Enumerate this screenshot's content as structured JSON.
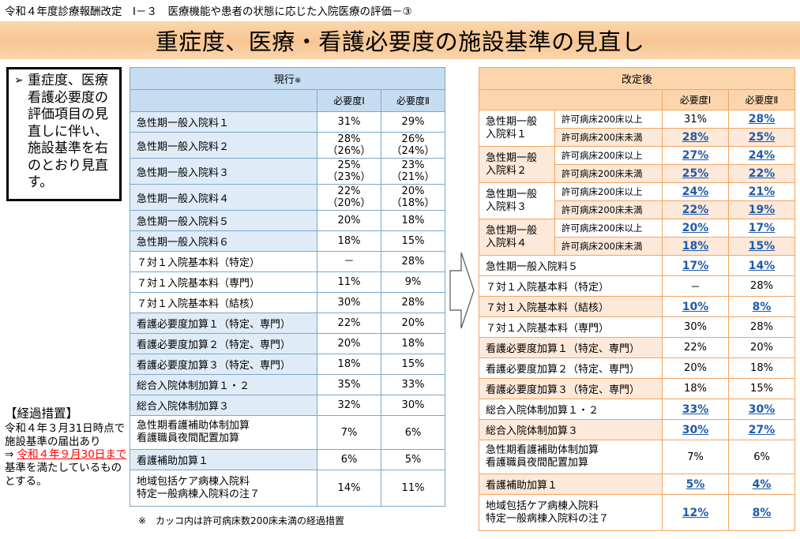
{
  "header": "令和４年度診療報酬改定　Ⅰ－３　医療機能や患者の状態に応じた入院医療の評価－③",
  "title": "重症度、医療・看護必要度の施設基準の見直し",
  "note": {
    "bullet": "➢",
    "text": "重症度、医療看護必要度の評価項目の見直しに伴い、施設基準を右のとおり見直す。"
  },
  "transitional": {
    "title": "【経過措置】",
    "line1": "令和４年３月31日時点で施設基準の届出あり",
    "arrow": "⇒",
    "deadline": "令和４年９月30日まで",
    "tail": "基準を満たしているものとする。"
  },
  "current": {
    "title": "現行",
    "title_mark": "※",
    "col1": "必要度Ⅰ",
    "col2": "必要度Ⅱ",
    "rows": [
      {
        "name": "急性期一般入院料１",
        "v1": "31%",
        "v2": "29%",
        "tint": 1
      },
      {
        "name": "急性期一般入院料２",
        "v1": "28%",
        "v1b": "（26%）",
        "v2": "26%",
        "v2b": "（24%）",
        "tint": 1
      },
      {
        "name": "急性期一般入院料３",
        "v1": "25%",
        "v1b": "（23%）",
        "v2": "23%",
        "v2b": "（21%）",
        "tint": 1
      },
      {
        "name": "急性期一般入院料４",
        "v1": "22%",
        "v1b": "（20%）",
        "v2": "20%",
        "v2b": "（18%）",
        "tint": 1
      },
      {
        "name": "急性期一般入院料５",
        "v1": "20%",
        "v2": "18%",
        "tint": 1
      },
      {
        "name": "急性期一般入院料６",
        "v1": "18%",
        "v2": "15%",
        "tint": 1
      },
      {
        "name": "７対１入院基本料（特定）",
        "v1": "－",
        "v2": "28%",
        "tint": 0
      },
      {
        "name": "７対１入院基本料（専門）",
        "v1": "11%",
        "v2": "9%",
        "tint": 0
      },
      {
        "name": "７対１入院基本料（結核）",
        "v1": "30%",
        "v2": "28%",
        "tint": 0
      },
      {
        "name": "看護必要度加算１（特定、専門）",
        "v1": "22%",
        "v2": "20%",
        "tint": 1
      },
      {
        "name": "看護必要度加算２（特定、専門）",
        "v1": "20%",
        "v2": "18%",
        "tint": 1
      },
      {
        "name": "看護必要度加算３（特定、専門）",
        "v1": "18%",
        "v2": "15%",
        "tint": 1
      },
      {
        "name": "総合入院体制加算１・２",
        "v1": "35%",
        "v2": "33%",
        "tint": 1
      },
      {
        "name": "総合入院体制加算３",
        "v1": "32%",
        "v2": "30%",
        "tint": 1
      },
      {
        "name": "急性期看護補助体制加算",
        "name2": "看護職員夜間配置加算",
        "v1": "7%",
        "v2": "6%",
        "tint": 0
      },
      {
        "name": "看護補助加算１",
        "v1": "6%",
        "v2": "5%",
        "tint": 1
      },
      {
        "name": "地域包括ケア病棟入院料",
        "name2": "特定一般病棟入院料の注７",
        "v1": "14%",
        "v2": "11%",
        "tint": 0
      }
    ]
  },
  "footnote": "※　カッコ内は許可病床数200床未満の経過措置",
  "revised": {
    "title": "改定後",
    "col1": "必要度Ⅰ",
    "col2": "必要度Ⅱ",
    "bed_large": "許可病床200床以上",
    "bed_small": "許可病床200床未満",
    "groups": [
      {
        "name1": "急性期一般",
        "name2": "入院料１",
        "a1": "31%",
        "a1c": 0,
        "a2": "28%",
        "a2c": 1,
        "b1": "28%",
        "b1c": 1,
        "b2": "25%",
        "b2c": 1
      },
      {
        "name1": "急性期一般",
        "name2": "入院料２",
        "a1": "27%",
        "a1c": 1,
        "a2": "24%",
        "a2c": 1,
        "b1": "25%",
        "b1c": 1,
        "b2": "22%",
        "b2c": 1
      },
      {
        "name1": "急性期一般",
        "name2": "入院料３",
        "a1": "24%",
        "a1c": 1,
        "a2": "21%",
        "a2c": 1,
        "b1": "22%",
        "b1c": 1,
        "b2": "19%",
        "b2c": 1
      },
      {
        "name1": "急性期一般",
        "name2": "入院料４",
        "a1": "20%",
        "a1c": 1,
        "a2": "17%",
        "a2c": 1,
        "b1": "18%",
        "b1c": 1,
        "b2": "15%",
        "b2c": 1
      }
    ],
    "rows": [
      {
        "name": "急性期一般入院料５",
        "v1": "17%",
        "c1": 1,
        "v2": "14%",
        "c2": 1,
        "tint": 0
      },
      {
        "name": "７対１入院基本料（特定）",
        "v1": "－",
        "c1": 0,
        "v2": "28%",
        "c2": 0,
        "tint": 0
      },
      {
        "name": "７対１入院基本料（結核）",
        "v1": "10%",
        "c1": 1,
        "v2": "8%",
        "c2": 1,
        "tint": 1
      },
      {
        "name": "７対１入院基本料（専門）",
        "v1": "30%",
        "c1": 0,
        "v2": "28%",
        "c2": 0,
        "tint": 0
      },
      {
        "name": "看護必要度加算１（特定、専門）",
        "v1": "22%",
        "c1": 0,
        "v2": "20%",
        "c2": 0,
        "tint": 1
      },
      {
        "name": "看護必要度加算２（特定、専門）",
        "v1": "20%",
        "c1": 0,
        "v2": "18%",
        "c2": 0,
        "tint": 0
      },
      {
        "name": "看護必要度加算３（特定、専門）",
        "v1": "18%",
        "c1": 0,
        "v2": "15%",
        "c2": 0,
        "tint": 1
      },
      {
        "name": "総合入院体制加算１・２",
        "v1": "33%",
        "c1": 1,
        "v2": "30%",
        "c2": 1,
        "tint": 0
      },
      {
        "name": "総合入院体制加算３",
        "v1": "30%",
        "c1": 1,
        "v2": "27%",
        "c2": 1,
        "tint": 1
      },
      {
        "name": "急性期看護補助体制加算",
        "name2": "看護職員夜間配置加算",
        "v1": "7%",
        "c1": 0,
        "v2": "6%",
        "c2": 0,
        "tint": 0
      },
      {
        "name": "看護補助加算１",
        "v1": "5%",
        "c1": 1,
        "v2": "4%",
        "c2": 1,
        "tint": 1
      },
      {
        "name": "地域包括ケア病棟入院料",
        "name2": "特定一般病棟入院料の注７",
        "v1": "12%",
        "c1": 1,
        "v2": "8%",
        "c2": 1,
        "tint": 0
      }
    ]
  }
}
